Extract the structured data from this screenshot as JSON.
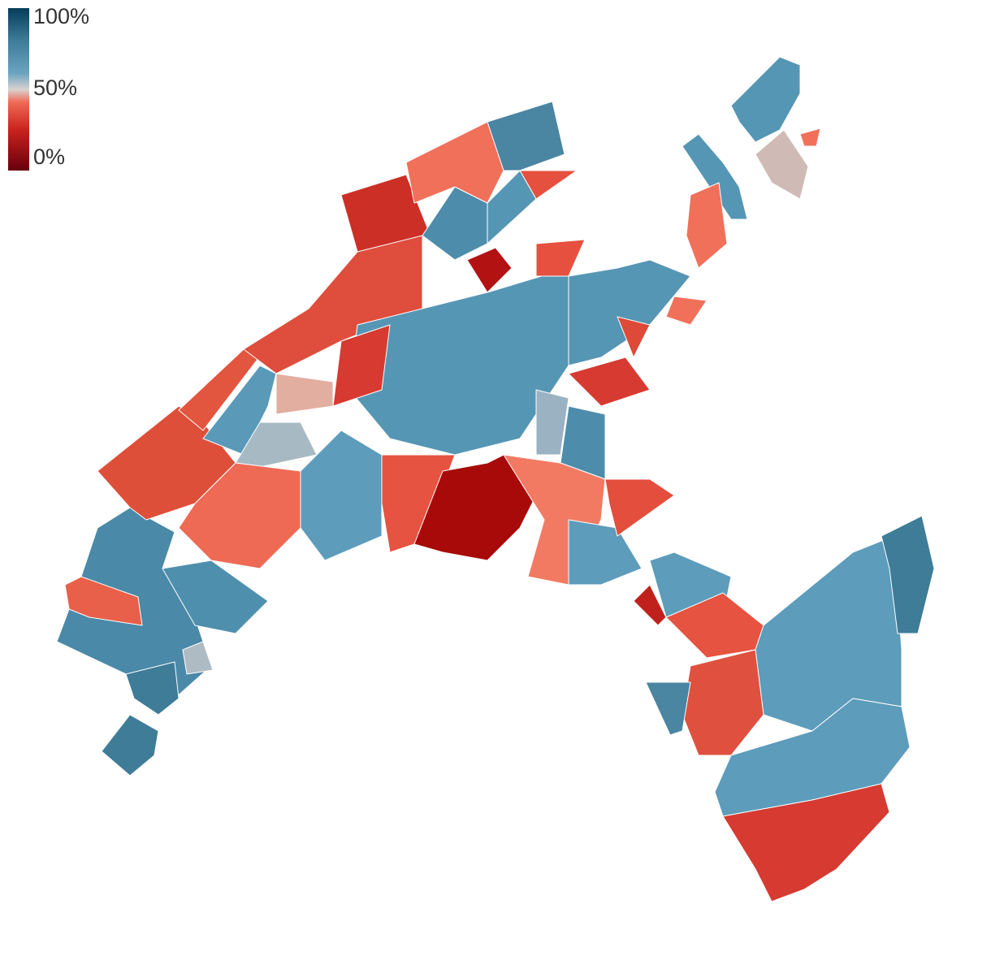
{
  "legend": {
    "range": [
      0,
      100
    ],
    "ticks": [
      {
        "value": 100,
        "label": "100%"
      },
      {
        "value": 50,
        "label": "50%"
      },
      {
        "value": 0,
        "label": "0%"
      }
    ]
  }
}
